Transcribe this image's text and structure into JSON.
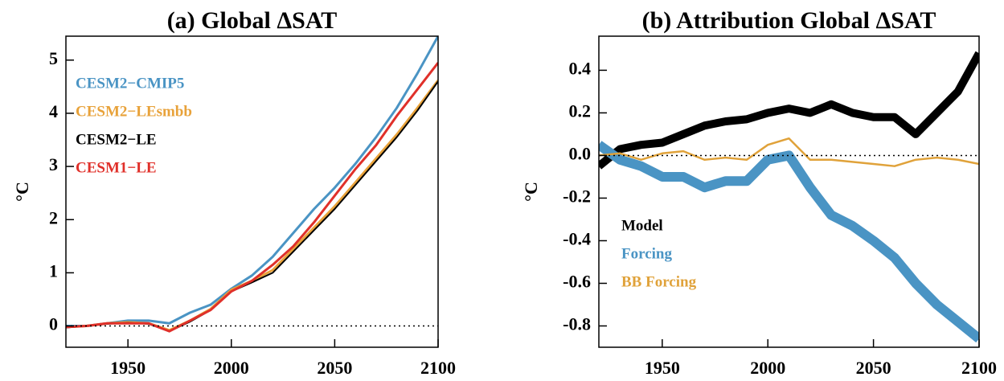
{
  "chart_data": [
    {
      "type": "line",
      "title": "(a) Global ΔSAT",
      "y_label": "°C",
      "x": [
        1920,
        1930,
        1940,
        1950,
        1960,
        1970,
        1980,
        1990,
        2000,
        2010,
        2020,
        2030,
        2040,
        2050,
        2060,
        2070,
        2080,
        2090,
        2100
      ],
      "xlim": [
        1920,
        2100
      ],
      "xticks": [
        1950,
        2000,
        2050,
        2100
      ],
      "ylim": [
        -0.4,
        5.45
      ],
      "yticks": [
        0,
        1,
        2,
        3,
        4,
        5
      ],
      "hline": 0,
      "legend": "upper left",
      "series": [
        {
          "name": "CESM2−CMIP5",
          "color": "#4a94c4",
          "line_width": 3,
          "values": [
            0,
            0,
            0.05,
            0.1,
            0.1,
            0.05,
            0.25,
            0.4,
            0.7,
            0.95,
            1.3,
            1.75,
            2.2,
            2.6,
            3.05,
            3.55,
            4.1,
            4.75,
            5.45
          ]
        },
        {
          "name": "CESM2−LEsmbb",
          "color": "#e8a23a",
          "line_width": 3,
          "values": [
            -0.02,
            0,
            0.05,
            0.07,
            0.05,
            -0.08,
            0.1,
            0.32,
            0.68,
            0.85,
            1.05,
            1.45,
            1.85,
            2.25,
            2.7,
            3.15,
            3.6,
            4.1,
            4.62
          ]
        },
        {
          "name": "CESM2−LE",
          "color": "#000000",
          "line_width": 2,
          "values": [
            -0.03,
            0,
            0.04,
            0.06,
            0.04,
            -0.1,
            0.08,
            0.3,
            0.65,
            0.82,
            1.0,
            1.4,
            1.8,
            2.2,
            2.65,
            3.1,
            3.55,
            4.05,
            4.6
          ]
        },
        {
          "name": "CESM1−LE",
          "color": "#e0302a",
          "line_width": 3,
          "values": [
            -0.02,
            0,
            0.05,
            0.05,
            0.05,
            -0.1,
            0.1,
            0.3,
            0.65,
            0.85,
            1.15,
            1.5,
            1.95,
            2.45,
            2.95,
            3.4,
            3.95,
            4.45,
            4.95
          ]
        }
      ]
    },
    {
      "type": "line",
      "title": "(b) Attribution Global ΔSAT",
      "y_label": "°C",
      "x": [
        1920,
        1930,
        1940,
        1950,
        1960,
        1970,
        1980,
        1990,
        2000,
        2010,
        2020,
        2030,
        2040,
        2050,
        2060,
        2070,
        2080,
        2090,
        2100
      ],
      "xlim": [
        1920,
        2100
      ],
      "xticks": [
        1950,
        2000,
        2050,
        2100
      ],
      "ylim": [
        -0.9,
        0.56
      ],
      "yticks": [
        0.4,
        0.2,
        {
          "value": 0,
          "label": "0.0"
        },
        -0.2,
        -0.4,
        -0.6,
        -0.8
      ],
      "hline": 0,
      "legend": "lower left",
      "series": [
        {
          "name": "Model",
          "color": "#000000",
          "line_width": 10,
          "values": [
            -0.05,
            0.03,
            0.05,
            0.06,
            0.1,
            0.14,
            0.16,
            0.17,
            0.2,
            0.22,
            0.2,
            0.24,
            0.2,
            0.18,
            0.18,
            0.1,
            0.2,
            0.3,
            0.48
          ]
        },
        {
          "name": "Forcing",
          "color": "#4a94c4",
          "line_width": 12,
          "values": [
            0.05,
            -0.02,
            -0.05,
            -0.1,
            -0.1,
            -0.15,
            -0.12,
            -0.12,
            -0.02,
            0.0,
            -0.15,
            -0.28,
            -0.33,
            -0.4,
            -0.48,
            -0.6,
            -0.7,
            -0.78,
            -0.86
          ]
        },
        {
          "name": "BB Forcing",
          "color": "#e0a23a",
          "line_width": 2.5,
          "values": [
            0,
            0.01,
            -0.02,
            0.01,
            0.02,
            -0.02,
            -0.01,
            -0.02,
            0.05,
            0.08,
            -0.02,
            -0.02,
            -0.03,
            -0.04,
            -0.05,
            -0.02,
            -0.01,
            -0.02,
            -0.04
          ]
        }
      ]
    }
  ]
}
